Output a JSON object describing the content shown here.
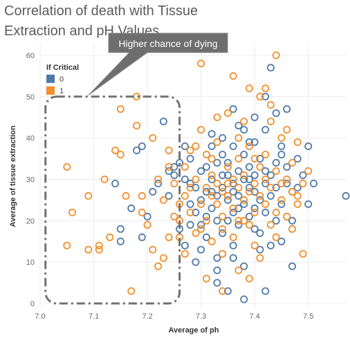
{
  "chart_data": {
    "type": "scatter",
    "title": "Correlation of death with Tissue Extraction and pH Values",
    "xlabel": "Average of ph",
    "ylabel": "Average of tissue extraction",
    "xlim": [
      7.0,
      7.57
    ],
    "ylim": [
      -1,
      63
    ],
    "x_ticks": [
      "7.0",
      "7.1",
      "7.2",
      "7.3",
      "7.4",
      "7.5"
    ],
    "x_tick_values": [
      7.0,
      7.1,
      7.2,
      7.3,
      7.4,
      7.5
    ],
    "y_ticks": [
      "0",
      "10",
      "20",
      "30",
      "40",
      "50",
      "60"
    ],
    "y_tick_values": [
      0,
      10,
      20,
      30,
      40,
      50,
      60
    ],
    "grid": true,
    "legend": {
      "title": "If Critical",
      "placement": "top-left",
      "entries": [
        {
          "label": "0",
          "color": "#4e79a7"
        },
        {
          "label": "1",
          "color": "#f28e2b"
        }
      ]
    },
    "annotation": {
      "text": "Higher chance of dying",
      "region": {
        "x_min": 7.01,
        "x_max": 7.26,
        "y_min": 0,
        "y_max": 50
      }
    },
    "series": [
      {
        "name": "0",
        "color": "#4e79a7",
        "points": [
          [
            7.14,
            29
          ],
          [
            7.15,
            18
          ],
          [
            7.15,
            15
          ],
          [
            7.17,
            23
          ],
          [
            7.18,
            37
          ],
          [
            7.19,
            38
          ],
          [
            7.19,
            16
          ],
          [
            7.2,
            21
          ],
          [
            7.21,
            27
          ],
          [
            7.22,
            29
          ],
          [
            7.23,
            44
          ],
          [
            7.24,
            32
          ],
          [
            7.24,
            26
          ],
          [
            7.25,
            33
          ],
          [
            7.25,
            31
          ],
          [
            7.26,
            18
          ],
          [
            7.27,
            38
          ],
          [
            7.27,
            14
          ],
          [
            7.28,
            29
          ],
          [
            7.28,
            35
          ],
          [
            7.28,
            24
          ],
          [
            7.29,
            28
          ],
          [
            7.29,
            22
          ],
          [
            7.3,
            19
          ],
          [
            7.3,
            25
          ],
          [
            7.31,
            33
          ],
          [
            7.31,
            27
          ],
          [
            7.31,
            16
          ],
          [
            7.32,
            23
          ],
          [
            7.32,
            30
          ],
          [
            7.32,
            38
          ],
          [
            7.33,
            26
          ],
          [
            7.33,
            20
          ],
          [
            7.33,
            11
          ],
          [
            7.33,
            5
          ],
          [
            7.34,
            28
          ],
          [
            7.34,
            36
          ],
          [
            7.34,
            17
          ],
          [
            7.35,
            25
          ],
          [
            7.35,
            31
          ],
          [
            7.35,
            34
          ],
          [
            7.35,
            3
          ],
          [
            7.36,
            29
          ],
          [
            7.36,
            22
          ],
          [
            7.36,
            38
          ],
          [
            7.36,
            14
          ],
          [
            7.37,
            32
          ],
          [
            7.37,
            26
          ],
          [
            7.37,
            19
          ],
          [
            7.37,
            43
          ],
          [
            7.38,
            30
          ],
          [
            7.38,
            24
          ],
          [
            7.38,
            36
          ],
          [
            7.38,
            9
          ],
          [
            7.39,
            28
          ],
          [
            7.39,
            21
          ],
          [
            7.39,
            33
          ],
          [
            7.39,
            39
          ],
          [
            7.4,
            27
          ],
          [
            7.4,
            31
          ],
          [
            7.4,
            18
          ],
          [
            7.4,
            45
          ],
          [
            7.41,
            25
          ],
          [
            7.41,
            35
          ],
          [
            7.41,
            13
          ],
          [
            7.42,
            29
          ],
          [
            7.42,
            22
          ],
          [
            7.42,
            42
          ],
          [
            7.42,
            3
          ],
          [
            7.43,
            31
          ],
          [
            7.43,
            26
          ],
          [
            7.43,
            57
          ],
          [
            7.44,
            34
          ],
          [
            7.44,
            20
          ],
          [
            7.44,
            28
          ],
          [
            7.45,
            24
          ],
          [
            7.45,
            15
          ],
          [
            7.45,
            38
          ],
          [
            7.46,
            29
          ],
          [
            7.46,
            33
          ],
          [
            7.46,
            47
          ],
          [
            7.47,
            27
          ],
          [
            7.47,
            20
          ],
          [
            7.47,
            9
          ],
          [
            7.48,
            35
          ],
          [
            7.48,
            28
          ],
          [
            7.49,
            31
          ],
          [
            7.5,
            24
          ],
          [
            7.5,
            38
          ],
          [
            7.51,
            29
          ],
          [
            7.36,
            47
          ],
          [
            7.34,
            40
          ],
          [
            7.33,
            8
          ],
          [
            7.3,
            13
          ],
          [
            7.29,
            10
          ],
          [
            7.41,
            17
          ],
          [
            7.45,
            36
          ],
          [
            7.39,
            30
          ],
          [
            7.38,
            42
          ],
          [
            7.37,
            23
          ],
          [
            7.36,
            27
          ],
          [
            7.35,
            20
          ],
          [
            7.34,
            31
          ],
          [
            7.33,
            34
          ],
          [
            7.32,
            27
          ],
          [
            7.31,
            21
          ],
          [
            7.3,
            32
          ],
          [
            7.57,
            26
          ],
          [
            7.44,
            46
          ],
          [
            7.42,
            50
          ],
          [
            7.4,
            39
          ],
          [
            7.38,
            1
          ],
          [
            7.43,
            14
          ],
          [
            7.27,
            30
          ],
          [
            7.26,
            34
          ],
          [
            7.28,
            19
          ],
          [
            7.32,
            41
          ],
          [
            7.36,
            11
          ],
          [
            7.4,
            23
          ],
          [
            7.42,
            32
          ]
        ]
      },
      {
        "name": "1",
        "color": "#f28e2b",
        "points": [
          [
            7.05,
            33
          ],
          [
            7.05,
            14
          ],
          [
            7.06,
            22
          ],
          [
            7.09,
            26
          ],
          [
            7.09,
            13
          ],
          [
            7.11,
            13
          ],
          [
            7.11,
            14
          ],
          [
            7.12,
            30
          ],
          [
            7.13,
            16
          ],
          [
            7.14,
            37
          ],
          [
            7.15,
            47
          ],
          [
            7.15,
            36
          ],
          [
            7.16,
            26
          ],
          [
            7.17,
            3
          ],
          [
            7.18,
            43
          ],
          [
            7.18,
            50
          ],
          [
            7.19,
            26
          ],
          [
            7.19,
            22
          ],
          [
            7.2,
            19
          ],
          [
            7.21,
            13
          ],
          [
            7.21,
            40
          ],
          [
            7.22,
            9
          ],
          [
            7.22,
            30
          ],
          [
            7.23,
            25
          ],
          [
            7.23,
            11
          ],
          [
            7.24,
            16
          ],
          [
            7.24,
            37
          ],
          [
            7.25,
            29
          ],
          [
            7.25,
            21
          ],
          [
            7.26,
            24
          ],
          [
            7.26,
            16
          ],
          [
            7.27,
            33
          ],
          [
            7.27,
            26
          ],
          [
            7.27,
            12
          ],
          [
            7.28,
            37
          ],
          [
            7.28,
            22
          ],
          [
            7.29,
            30
          ],
          [
            7.29,
            17
          ],
          [
            7.3,
            24
          ],
          [
            7.3,
            42
          ],
          [
            7.3,
            58
          ],
          [
            7.31,
            28
          ],
          [
            7.31,
            20
          ],
          [
            7.31,
            36
          ],
          [
            7.32,
            26
          ],
          [
            7.32,
            15
          ],
          [
            7.32,
            31
          ],
          [
            7.33,
            29
          ],
          [
            7.33,
            24
          ],
          [
            7.33,
            45
          ],
          [
            7.34,
            21
          ],
          [
            7.34,
            27
          ],
          [
            7.34,
            18
          ],
          [
            7.34,
            12
          ],
          [
            7.35,
            33
          ],
          [
            7.35,
            26
          ],
          [
            7.35,
            46
          ],
          [
            7.36,
            23
          ],
          [
            7.36,
            30
          ],
          [
            7.36,
            55
          ],
          [
            7.37,
            28
          ],
          [
            7.37,
            20
          ],
          [
            7.37,
            35
          ],
          [
            7.37,
            8
          ],
          [
            7.38,
            25
          ],
          [
            7.38,
            31
          ],
          [
            7.38,
            44
          ],
          [
            7.39,
            27
          ],
          [
            7.39,
            19
          ],
          [
            7.39,
            38
          ],
          [
            7.4,
            29
          ],
          [
            7.4,
            22
          ],
          [
            7.4,
            35
          ],
          [
            7.41,
            26
          ],
          [
            7.41,
            50
          ],
          [
            7.41,
            11
          ],
          [
            7.42,
            30
          ],
          [
            7.42,
            24
          ],
          [
            7.42,
            52
          ],
          [
            7.43,
            28
          ],
          [
            7.43,
            19
          ],
          [
            7.43,
            44
          ],
          [
            7.44,
            32
          ],
          [
            7.44,
            60
          ],
          [
            7.44,
            16
          ],
          [
            7.45,
            25
          ],
          [
            7.45,
            40
          ],
          [
            7.46,
            30
          ],
          [
            7.46,
            21
          ],
          [
            7.47,
            34
          ],
          [
            7.47,
            27
          ],
          [
            7.48,
            39
          ],
          [
            7.48,
            24
          ],
          [
            7.49,
            29
          ],
          [
            7.49,
            12
          ],
          [
            7.5,
            32
          ],
          [
            7.46,
            42
          ],
          [
            7.43,
            48
          ],
          [
            7.39,
            6
          ],
          [
            7.34,
            3
          ],
          [
            7.31,
            6
          ],
          [
            7.29,
            38
          ],
          [
            7.33,
            39
          ],
          [
            7.36,
            16
          ],
          [
            7.38,
            20
          ],
          [
            7.41,
            33
          ],
          [
            7.45,
            29
          ],
          [
            7.47,
            18
          ],
          [
            7.3,
            18
          ],
          [
            7.32,
            35
          ],
          [
            7.35,
            29
          ],
          [
            7.37,
            40
          ],
          [
            7.4,
            14
          ],
          [
            7.42,
            36
          ],
          [
            7.44,
            22
          ],
          [
            7.48,
            26
          ],
          [
            7.26,
            20
          ],
          [
            7.28,
            28
          ],
          [
            7.24,
            33
          ],
          [
            7.39,
            52
          ]
        ]
      }
    ]
  }
}
